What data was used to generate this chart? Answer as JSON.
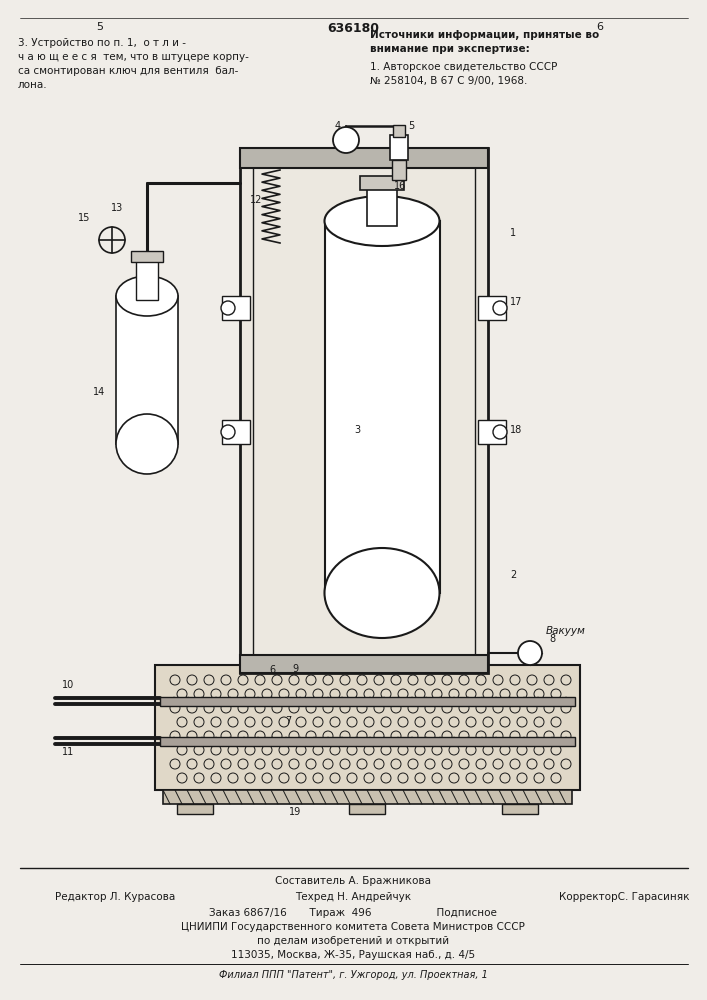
{
  "bg_color": "#f0ede8",
  "line_color": "#1a1a1a",
  "page_number_left": "5",
  "page_number_center": "636180",
  "page_number_right": "6",
  "top_left_text": "3. Устройство по п. 1,  о т л и -\nч а ю щ е е с я  тем, что в штуцере корпу-\nса смонтирован ключ для вентиля  бал-\nлона.",
  "top_right_title": "Источники информации, принятые во\nвнимание при экспертизе:",
  "top_right_body": "1. Авторское свидетельство СССР\n№ 258104, В 67 С 9/00, 1968.",
  "bottom_line1": "Составитель А. Бражникова",
  "bottom_line2_left": "Редактор Л. Курасова",
  "bottom_line2_center": "Техред Н. Андрейчук",
  "bottom_line2_right": "КорректорС. Гарасиняк",
  "bottom_line3": "Заказ 6867/16       Тираж  496                    Подписное",
  "bottom_line4": "ЦНИИПИ Государственного комитета Совета Министров СССР",
  "bottom_line5": "по делам изобретений и открытий",
  "bottom_line6": "113035, Москва, Ж-35, Раушская наб., д. 4/5",
  "bottom_line7": "Филиал ППП \"Патент\", г. Ужгород, ул. Проектная, 1"
}
